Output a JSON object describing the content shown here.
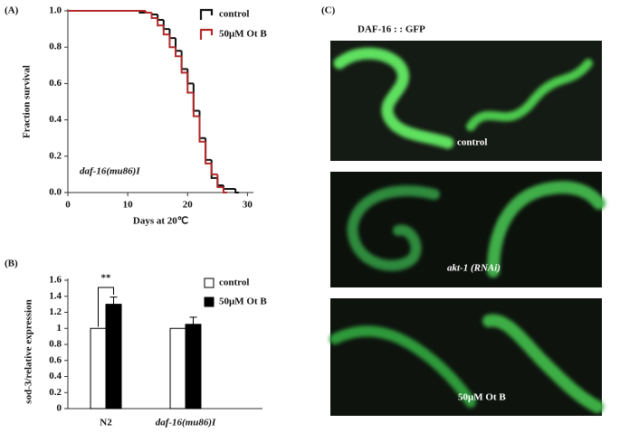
{
  "chart_data": [
    {
      "type": "step",
      "panel_label": "(A)",
      "ylabel": "Fraction survival",
      "xlabel": "Days at 20℃",
      "annotation": "daf-16(mu86)I",
      "xlim": [
        0,
        31
      ],
      "xticks": [
        0,
        10,
        20,
        30
      ],
      "ylim": [
        0,
        1
      ],
      "yticks": [
        {
          "value": 0,
          "label": "0.0"
        },
        0.2,
        0.4,
        0.6,
        0.8,
        {
          "value": 1,
          "label": "1.0"
        }
      ],
      "series": [
        {
          "name": "control",
          "color": "#111111",
          "x": [
            0,
            12,
            14,
            15,
            16,
            17,
            18,
            19,
            20,
            21,
            22,
            23,
            24,
            25,
            26,
            28
          ],
          "values": [
            1.0,
            0.99,
            0.98,
            0.95,
            0.9,
            0.85,
            0.78,
            0.68,
            0.6,
            0.45,
            0.3,
            0.18,
            0.08,
            0.04,
            0.02,
            0.0
          ]
        },
        {
          "name": "50μM Ot B",
          "color": "#b22a2a",
          "x": [
            0,
            13,
            14,
            15,
            16,
            17,
            18,
            19,
            20,
            21,
            22,
            23,
            24,
            25,
            26
          ],
          "values": [
            1.0,
            0.99,
            0.96,
            0.92,
            0.87,
            0.8,
            0.75,
            0.66,
            0.55,
            0.42,
            0.28,
            0.16,
            0.1,
            0.03,
            0.0
          ]
        }
      ]
    },
    {
      "type": "bar",
      "panel_label": "(B)",
      "ylabel": "sod-3/relative expression",
      "annotation": "**",
      "categories": [
        "N2",
        "daf-16(mu86)I"
      ],
      "ylim": [
        0,
        1.6
      ],
      "yticks": [
        0,
        0.2,
        0.4,
        0.6,
        0.8,
        1,
        1.2,
        1.4,
        1.6
      ],
      "series": [
        {
          "name": "control",
          "color": "#ffffff",
          "values": [
            1,
            1
          ]
        },
        {
          "name": "50μM Ot B",
          "color": "#000000",
          "values": [
            1.3,
            1.05
          ],
          "errors": [
            0.09,
            0.09
          ]
        }
      ]
    }
  ],
  "panel_c": {
    "panel_label": "(C)",
    "title": "DAF-16 : : GFP",
    "image_labels": [
      "control",
      "akt-1 (RNAi)",
      "50μM Ot B"
    ]
  }
}
